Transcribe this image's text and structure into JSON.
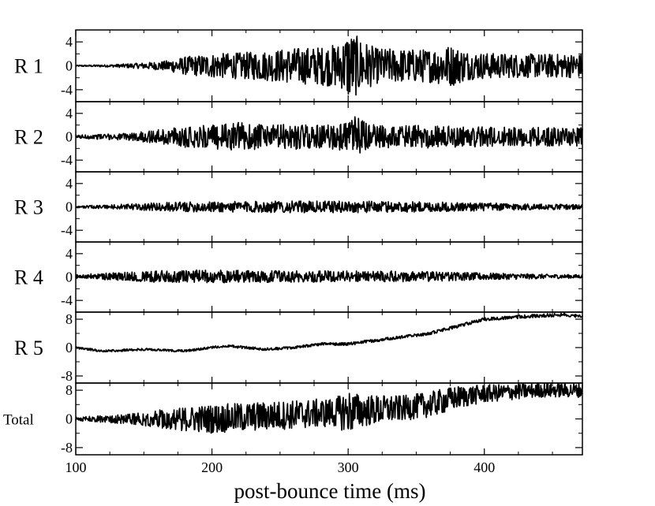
{
  "chart_data": {
    "type": "line",
    "xlabel": "post-bounce time (ms)",
    "xlim": [
      100,
      472
    ],
    "xticks": [
      100,
      200,
      300,
      400
    ],
    "grid": false,
    "panels": [
      {
        "label": "R 1",
        "ylim": [
          -6,
          6
        ],
        "yticks": [
          4,
          0,
          -4
        ],
        "yticklabels": [
          "4",
          "0",
          "-4"
        ],
        "series": [
          {
            "envelope": [
              [
                100,
                0.1
              ],
              [
                125,
                0.2
              ],
              [
                150,
                0.5
              ],
              [
                165,
                0.8
              ],
              [
                180,
                1.5
              ],
              [
                200,
                2.0
              ],
              [
                220,
                2.2
              ],
              [
                240,
                2.5
              ],
              [
                260,
                3.0
              ],
              [
                280,
                3.2
              ],
              [
                295,
                3.8
              ],
              [
                300,
                5.8
              ],
              [
                310,
                4.5
              ],
              [
                320,
                3.0
              ],
              [
                340,
                2.8
              ],
              [
                360,
                2.8
              ],
              [
                375,
                3.5
              ],
              [
                390,
                2.3
              ],
              [
                420,
                2.0
              ],
              [
                472,
                2.0
              ]
            ],
            "trend": [
              [
                100,
                0
              ],
              [
                472,
                0
              ]
            ]
          }
        ]
      },
      {
        "label": "R 2",
        "ylim": [
          -6,
          6
        ],
        "yticks": [
          4,
          0,
          -4
        ],
        "yticklabels": [
          "4",
          "0",
          "-4"
        ],
        "series": [
          {
            "envelope": [
              [
                100,
                0.3
              ],
              [
                140,
                0.6
              ],
              [
                160,
                1.2
              ],
              [
                180,
                1.8
              ],
              [
                200,
                2.0
              ],
              [
                220,
                2.5
              ],
              [
                240,
                2.0
              ],
              [
                260,
                2.2
              ],
              [
                280,
                2.0
              ],
              [
                300,
                2.5
              ],
              [
                305,
                3.5
              ],
              [
                320,
                2.0
              ],
              [
                350,
                2.0
              ],
              [
                380,
                1.8
              ],
              [
                420,
                1.6
              ],
              [
                472,
                1.6
              ]
            ],
            "trend": [
              [
                100,
                0
              ],
              [
                472,
                0
              ]
            ]
          }
        ]
      },
      {
        "label": "R 3",
        "ylim": [
          -6,
          6
        ],
        "yticks": [
          4,
          0,
          -4
        ],
        "yticklabels": [
          "4",
          "0",
          "-4"
        ],
        "series": [
          {
            "envelope": [
              [
                100,
                0.15
              ],
              [
                140,
                0.5
              ],
              [
                170,
                0.8
              ],
              [
                200,
                0.9
              ],
              [
                250,
                1.0
              ],
              [
                300,
                1.0
              ],
              [
                350,
                0.9
              ],
              [
                400,
                0.7
              ],
              [
                440,
                0.5
              ],
              [
                472,
                0.4
              ]
            ],
            "trend": [
              [
                100,
                0
              ],
              [
                472,
                0
              ]
            ]
          }
        ]
      },
      {
        "label": "R 4",
        "ylim": [
          -6,
          6
        ],
        "yticks": [
          4,
          0,
          -4
        ],
        "yticklabels": [
          "4",
          "0",
          "-4"
        ],
        "series": [
          {
            "envelope": [
              [
                100,
                0.3
              ],
              [
                140,
                0.8
              ],
              [
                160,
                1.0
              ],
              [
                200,
                1.1
              ],
              [
                250,
                1.0
              ],
              [
                300,
                1.0
              ],
              [
                350,
                0.9
              ],
              [
                400,
                0.6
              ],
              [
                440,
                0.4
              ],
              [
                472,
                0.3
              ]
            ],
            "trend": [
              [
                100,
                0.1
              ],
              [
                472,
                0.1
              ]
            ]
          }
        ]
      },
      {
        "label": "R 5",
        "ylim": [
          -10,
          10
        ],
        "yticks": [
          8,
          0,
          -8
        ],
        "yticklabels": [
          "8",
          "0",
          "-8"
        ],
        "series": [
          {
            "envelope": [
              [
                100,
                0.3
              ],
              [
                472,
                0.5
              ]
            ],
            "trend": [
              [
                100,
                0
              ],
              [
                120,
                -1
              ],
              [
                150,
                -0.5
              ],
              [
                180,
                -1
              ],
              [
                210,
                0.5
              ],
              [
                240,
                -0.5
              ],
              [
                260,
                0
              ],
              [
                280,
                1
              ],
              [
                300,
                1
              ],
              [
                320,
                2
              ],
              [
                340,
                3
              ],
              [
                360,
                4
              ],
              [
                380,
                6
              ],
              [
                400,
                8
              ],
              [
                420,
                8.5
              ],
              [
                440,
                9
              ],
              [
                460,
                9.3
              ],
              [
                472,
                8.8
              ]
            ]
          }
        ]
      },
      {
        "label": "Total",
        "ylim": [
          -10,
          10
        ],
        "yticks": [
          8,
          0,
          -8
        ],
        "yticklabels": [
          "8",
          "0",
          "-8"
        ],
        "series": [
          {
            "envelope": [
              [
                100,
                0.5
              ],
              [
                140,
                1.5
              ],
              [
                170,
                3.0
              ],
              [
                200,
                4.0
              ],
              [
                230,
                4.0
              ],
              [
                260,
                4.0
              ],
              [
                290,
                4.0
              ],
              [
                300,
                6.0
              ],
              [
                310,
                4.5
              ],
              [
                340,
                3.5
              ],
              [
                370,
                3.5
              ],
              [
                400,
                2.5
              ],
              [
                440,
                2.0
              ],
              [
                472,
                2.0
              ]
            ],
            "trend": [
              [
                100,
                0
              ],
              [
                150,
                0
              ],
              [
                200,
                0
              ],
              [
                250,
                1
              ],
              [
                300,
                2
              ],
              [
                340,
                3
              ],
              [
                360,
                4
              ],
              [
                380,
                6
              ],
              [
                400,
                7
              ],
              [
                440,
                8
              ],
              [
                472,
                8
              ]
            ]
          }
        ]
      }
    ]
  }
}
